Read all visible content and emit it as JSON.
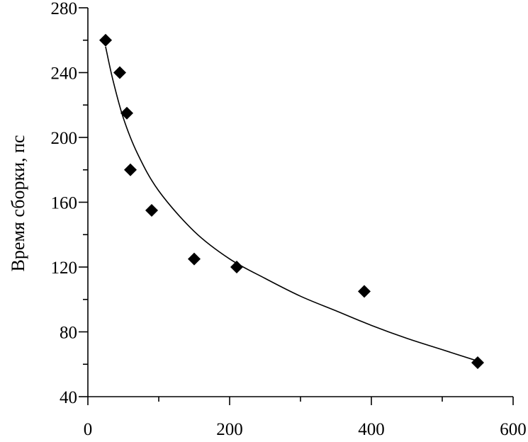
{
  "chart_data": {
    "type": "scatter",
    "title": "",
    "xlabel": "",
    "ylabel": "Время сборки, пс",
    "xlim": [
      0,
      600
    ],
    "ylim": [
      40,
      280
    ],
    "x_ticks": [
      0,
      200,
      400,
      600
    ],
    "x_minor_ticks": [
      100,
      300,
      500
    ],
    "y_ticks": [
      40,
      80,
      120,
      160,
      200,
      240,
      280
    ],
    "grid": false,
    "series": [
      {
        "marker": "diamond",
        "color": "#000000",
        "points": [
          {
            "x": 25,
            "y": 260
          },
          {
            "x": 45,
            "y": 240
          },
          {
            "x": 55,
            "y": 215
          },
          {
            "x": 60,
            "y": 180
          },
          {
            "x": 90,
            "y": 155
          },
          {
            "x": 150,
            "y": 125
          },
          {
            "x": 210,
            "y": 120
          },
          {
            "x": 390,
            "y": 105
          },
          {
            "x": 550,
            "y": 61
          }
        ]
      }
    ],
    "fit_curve": {
      "color": "#000000",
      "points": [
        {
          "x": 25,
          "y": 256
        },
        {
          "x": 35,
          "y": 236
        },
        {
          "x": 50,
          "y": 212
        },
        {
          "x": 70,
          "y": 190
        },
        {
          "x": 100,
          "y": 167
        },
        {
          "x": 150,
          "y": 142
        },
        {
          "x": 200,
          "y": 125
        },
        {
          "x": 250,
          "y": 113
        },
        {
          "x": 300,
          "y": 102
        },
        {
          "x": 350,
          "y": 93
        },
        {
          "x": 400,
          "y": 84
        },
        {
          "x": 450,
          "y": 76
        },
        {
          "x": 500,
          "y": 69
        },
        {
          "x": 550,
          "y": 62
        }
      ]
    }
  }
}
